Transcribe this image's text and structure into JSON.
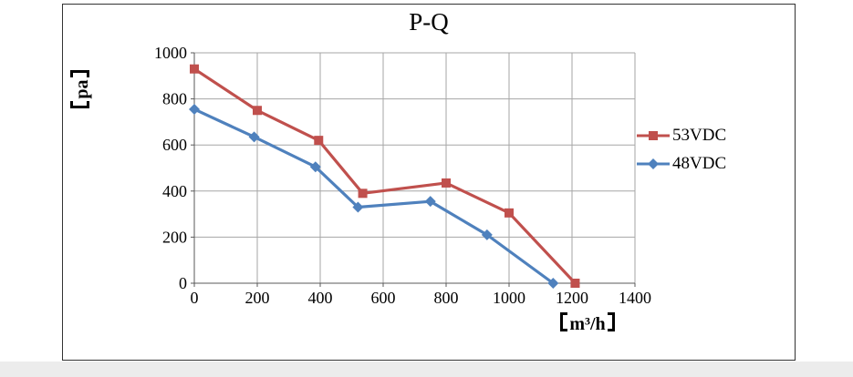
{
  "page": {
    "background": "#ffffff",
    "bottom_strip_color": "#ececec",
    "frame_border_color": "#333333"
  },
  "chart_data": {
    "type": "line",
    "title": "P-Q",
    "xlabel": "【m³/h】",
    "ylabel": "【pa】",
    "xlim": [
      0,
      1400
    ],
    "ylim": [
      0,
      1000
    ],
    "xticks": [
      0,
      200,
      400,
      600,
      800,
      1000,
      1200,
      1400
    ],
    "yticks": [
      0,
      200,
      400,
      600,
      800,
      1000
    ],
    "grid": true,
    "legend_position": "right",
    "colors": {
      "grid": "#A6A6A6",
      "axis": "#595959",
      "text": "#000000"
    },
    "series": [
      {
        "name": "53VDC",
        "color": "#C0504D",
        "marker": "square",
        "x": [
          0,
          200,
          395,
          535,
          800,
          1000,
          1210
        ],
        "y": [
          930,
          750,
          620,
          390,
          435,
          305,
          0
        ]
      },
      {
        "name": "48VDC",
        "color": "#4F81BD",
        "marker": "diamond",
        "x": [
          0,
          190,
          385,
          520,
          750,
          930,
          1140
        ],
        "y": [
          755,
          635,
          505,
          330,
          355,
          210,
          0
        ]
      }
    ]
  }
}
